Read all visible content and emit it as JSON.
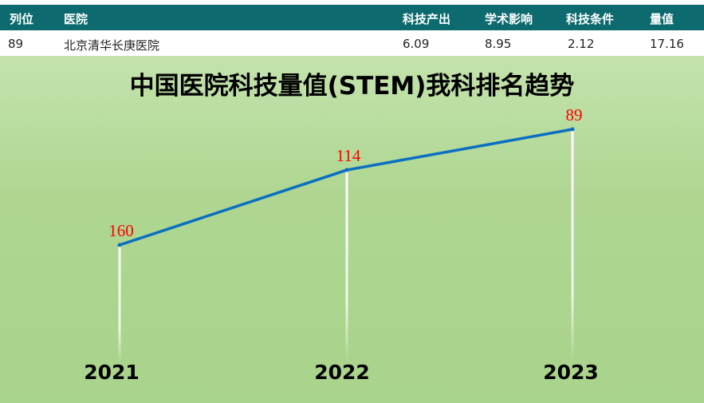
{
  "table": {
    "headers": [
      "列位",
      "医院",
      "科技产出",
      "学术影响",
      "科技条件",
      "量值"
    ],
    "row": [
      "89",
      "北京清华长庚医院",
      "6.09",
      "8.95",
      "2.12",
      "17.16"
    ]
  },
  "chart_data": {
    "type": "line",
    "title": "中国医院科技量值(STEM)我科排名趋势",
    "categories": [
      "2021",
      "2022",
      "2023"
    ],
    "values": [
      160,
      114,
      89
    ],
    "y_reversed": true,
    "grid": false,
    "line_color": "#0a6fc2",
    "label_color": "#ff0000"
  }
}
